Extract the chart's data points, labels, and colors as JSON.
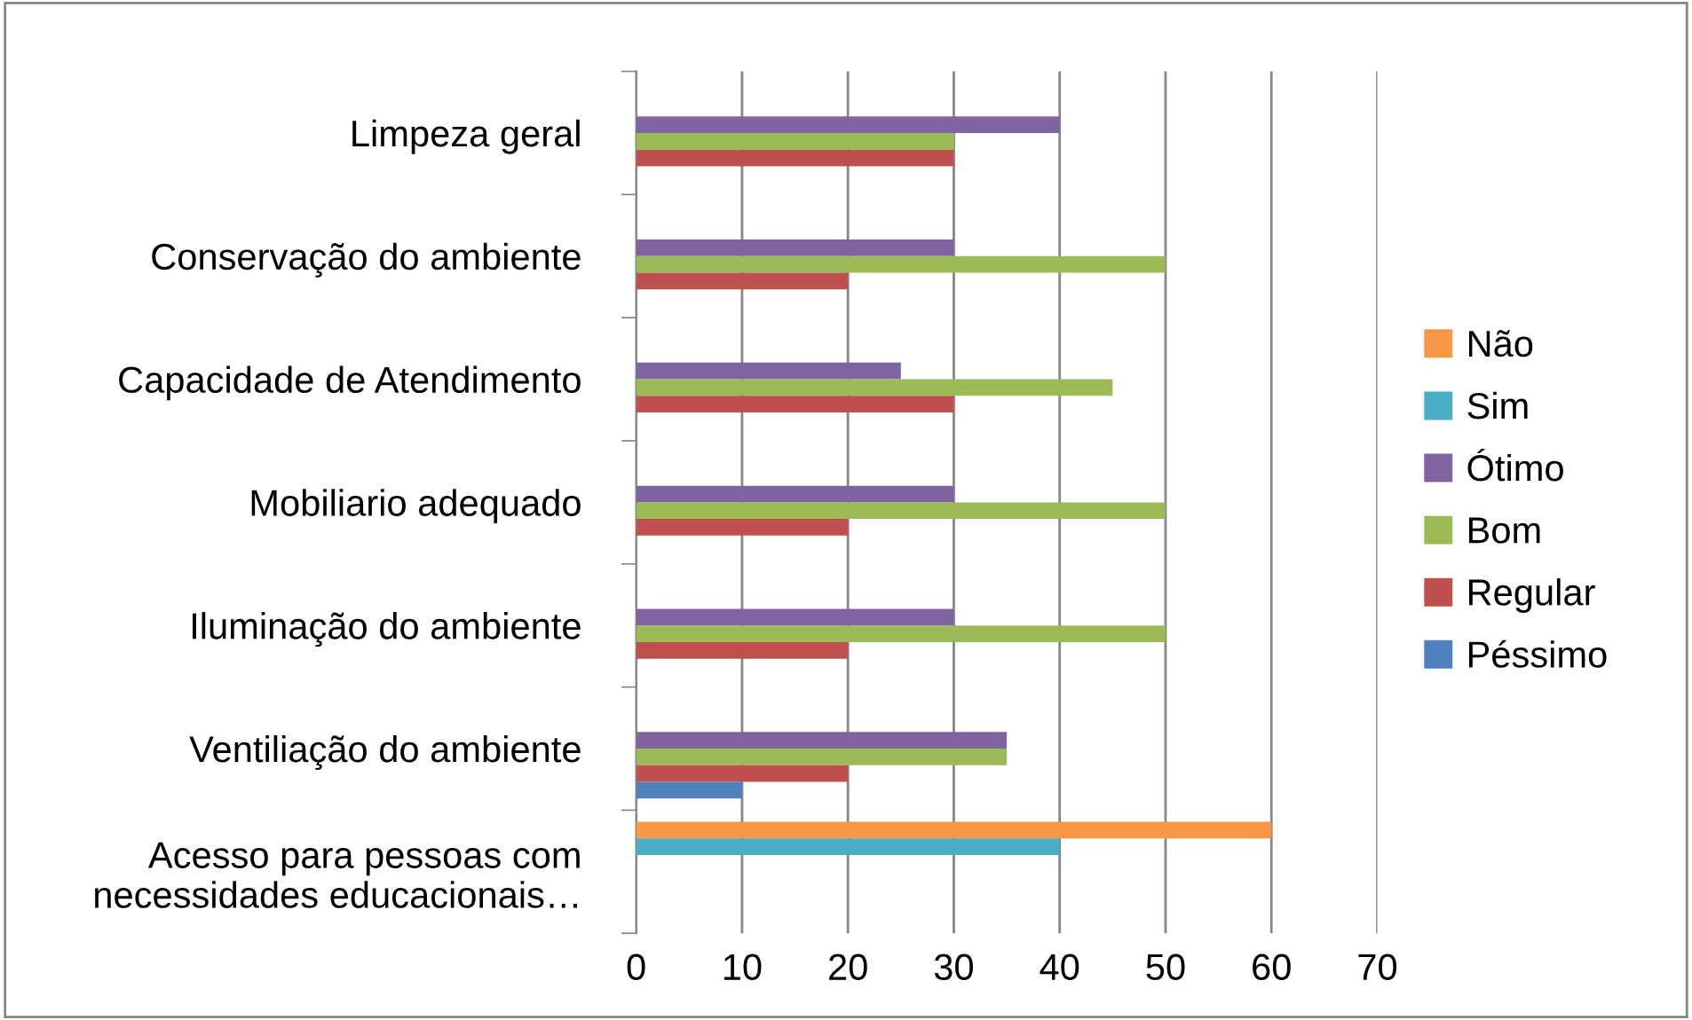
{
  "chart_data": {
    "type": "bar",
    "orientation": "horizontal",
    "categories": [
      "Limpeza geral",
      "Conservação do ambiente",
      "Capacidade de Atendimento",
      "Mobiliario adequado",
      "Iluminação do ambiente",
      "Ventiliação do ambiente",
      "Acesso para pessoas com\nnecessidades educacionais…"
    ],
    "series": [
      {
        "name": "Não",
        "color": "#f79646",
        "values": [
          null,
          null,
          null,
          null,
          null,
          null,
          60
        ]
      },
      {
        "name": "Sim",
        "color": "#4bacc6",
        "values": [
          null,
          null,
          null,
          null,
          null,
          null,
          40
        ]
      },
      {
        "name": "Ótimo",
        "color": "#8064a2",
        "values": [
          40,
          30,
          25,
          30,
          30,
          35,
          null
        ]
      },
      {
        "name": "Bom",
        "color": "#9bbb59",
        "values": [
          30,
          50,
          45,
          50,
          50,
          35,
          null
        ]
      },
      {
        "name": "Regular",
        "color": "#c0504d",
        "values": [
          30,
          20,
          30,
          20,
          20,
          20,
          null
        ]
      },
      {
        "name": "Péssimo",
        "color": "#4f81bd",
        "values": [
          null,
          null,
          null,
          null,
          null,
          10,
          null
        ]
      }
    ],
    "xlim": [
      0,
      70
    ],
    "xticks": [
      0,
      10,
      20,
      30,
      40,
      50,
      60,
      70
    ],
    "grid": "x",
    "legend": "right"
  }
}
